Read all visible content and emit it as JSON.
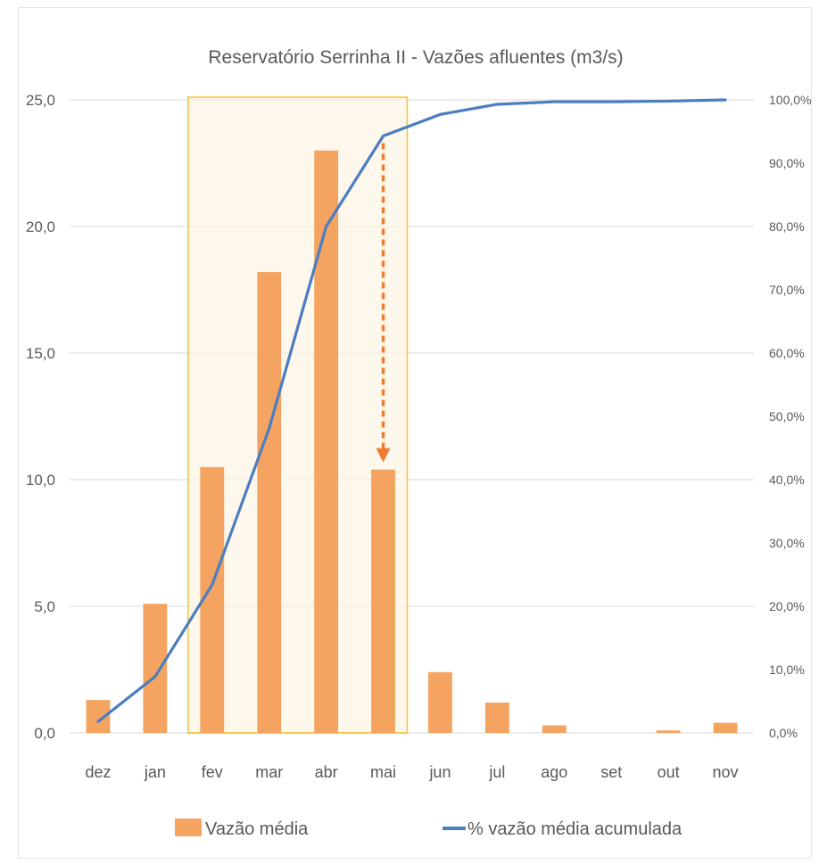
{
  "chart_data": {
    "type": "bar",
    "title": "Reservatório Serrinha II - Vazões afluentes (m3/s)",
    "categories": [
      "dez",
      "jan",
      "fev",
      "mar",
      "abr",
      "mai",
      "jun",
      "jul",
      "ago",
      "set",
      "out",
      "nov"
    ],
    "series": [
      {
        "name": "Vazão média",
        "type": "bar",
        "axis": "left",
        "values": [
          1.3,
          5.1,
          10.5,
          18.2,
          23.0,
          10.4,
          2.4,
          1.2,
          0.3,
          0.0,
          0.1,
          0.4
        ],
        "color": "#F4A460"
      },
      {
        "name": "% vazão média acumulada",
        "type": "line",
        "axis": "right",
        "values": [
          1.8,
          8.9,
          23.4,
          48.1,
          80.0,
          94.3,
          97.7,
          99.3,
          99.7,
          99.7,
          99.8,
          100.0
        ],
        "color": "#4A7EC0"
      }
    ],
    "y_left": {
      "min": 0,
      "max": 25,
      "ticks": [
        "0,0",
        "5,0",
        "10,0",
        "15,0",
        "20,0",
        "25,0"
      ]
    },
    "y_right": {
      "min": 0,
      "max": 100,
      "ticks": [
        "0,0%",
        "10,0%",
        "20,0%",
        "30,0%",
        "40,0%",
        "50,0%",
        "60,0%",
        "70,0%",
        "80,0%",
        "90,0%",
        "100,0%"
      ]
    },
    "highlight": {
      "from": "fev",
      "to": "mai",
      "color": "#F5C13A"
    },
    "annotation": {
      "type": "arrow",
      "at": "mai",
      "from_pct": 94.3,
      "to_value": 10.4,
      "color": "#EE7D31"
    },
    "grid": "horizontal",
    "legend": "bottom"
  }
}
